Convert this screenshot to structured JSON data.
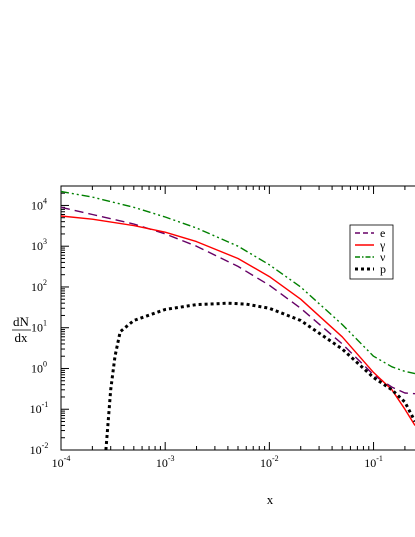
{
  "chart_data": {
    "type": "line",
    "title": "",
    "xlabel": "x",
    "ylabel_numerator": "dN",
    "ylabel_denominator": "dx",
    "x_scale": "log",
    "y_scale": "log",
    "xlim": [
      0.0001,
      0.25
    ],
    "ylim": [
      0.01,
      30000
    ],
    "grid": false,
    "legend_position": "upper-right",
    "x_ticks": [
      {
        "base": "10",
        "exp": "-4",
        "value": 0.0001
      },
      {
        "base": "10",
        "exp": "-3",
        "value": 0.001
      },
      {
        "base": "10",
        "exp": "-2",
        "value": 0.01
      },
      {
        "base": "10",
        "exp": "-1",
        "value": 0.1
      }
    ],
    "y_ticks": [
      {
        "base": "10",
        "exp": "-2",
        "value": 0.01
      },
      {
        "base": "10",
        "exp": "-1",
        "value": 0.1
      },
      {
        "base": "10",
        "exp": "0",
        "value": 1
      },
      {
        "base": "10",
        "exp": "1",
        "value": 10
      },
      {
        "base": "10",
        "exp": "2",
        "value": 100
      },
      {
        "base": "10",
        "exp": "3",
        "value": 1000
      },
      {
        "base": "10",
        "exp": "4",
        "value": 10000
      }
    ],
    "series": [
      {
        "name": "e",
        "color": "#660066",
        "dash": "dashed",
        "x": [
          0.0001,
          0.0002,
          0.0005,
          0.001,
          0.002,
          0.005,
          0.01,
          0.02,
          0.05,
          0.1,
          0.15,
          0.2,
          0.25
        ],
        "y": [
          9000,
          6000,
          3500,
          2000,
          1000,
          320,
          110,
          30,
          4,
          0.7,
          0.35,
          0.25,
          0.24
        ]
      },
      {
        "name": "γ",
        "color": "#ff0000",
        "dash": "solid",
        "x": [
          0.0001,
          0.0002,
          0.0005,
          0.001,
          0.002,
          0.005,
          0.01,
          0.02,
          0.05,
          0.1,
          0.15,
          0.2,
          0.25
        ],
        "y": [
          5500,
          4600,
          3200,
          2200,
          1300,
          500,
          180,
          50,
          6,
          0.8,
          0.3,
          0.1,
          0.04
        ]
      },
      {
        "name": "ν",
        "color": "#008000",
        "dash": "dashdotdot",
        "x": [
          0.0001,
          0.0002,
          0.0005,
          0.001,
          0.002,
          0.005,
          0.01,
          0.02,
          0.05,
          0.1,
          0.15,
          0.2,
          0.25
        ],
        "y": [
          22000,
          16000,
          9000,
          5200,
          2800,
          1000,
          350,
          100,
          12,
          2,
          1.1,
          0.85,
          0.75
        ]
      },
      {
        "name": "p",
        "color": "#000000",
        "dash": "dotted",
        "x": [
          0.00027,
          0.0003,
          0.00033,
          0.00037,
          0.0005,
          0.001,
          0.002,
          0.004,
          0.006,
          0.01,
          0.02,
          0.05,
          0.1,
          0.15,
          0.2,
          0.25
        ],
        "y": [
          0.01,
          0.3,
          2,
          8,
          15,
          28,
          37,
          40,
          38,
          30,
          15,
          3,
          0.6,
          0.3,
          0.15,
          0.05
        ]
      }
    ]
  }
}
